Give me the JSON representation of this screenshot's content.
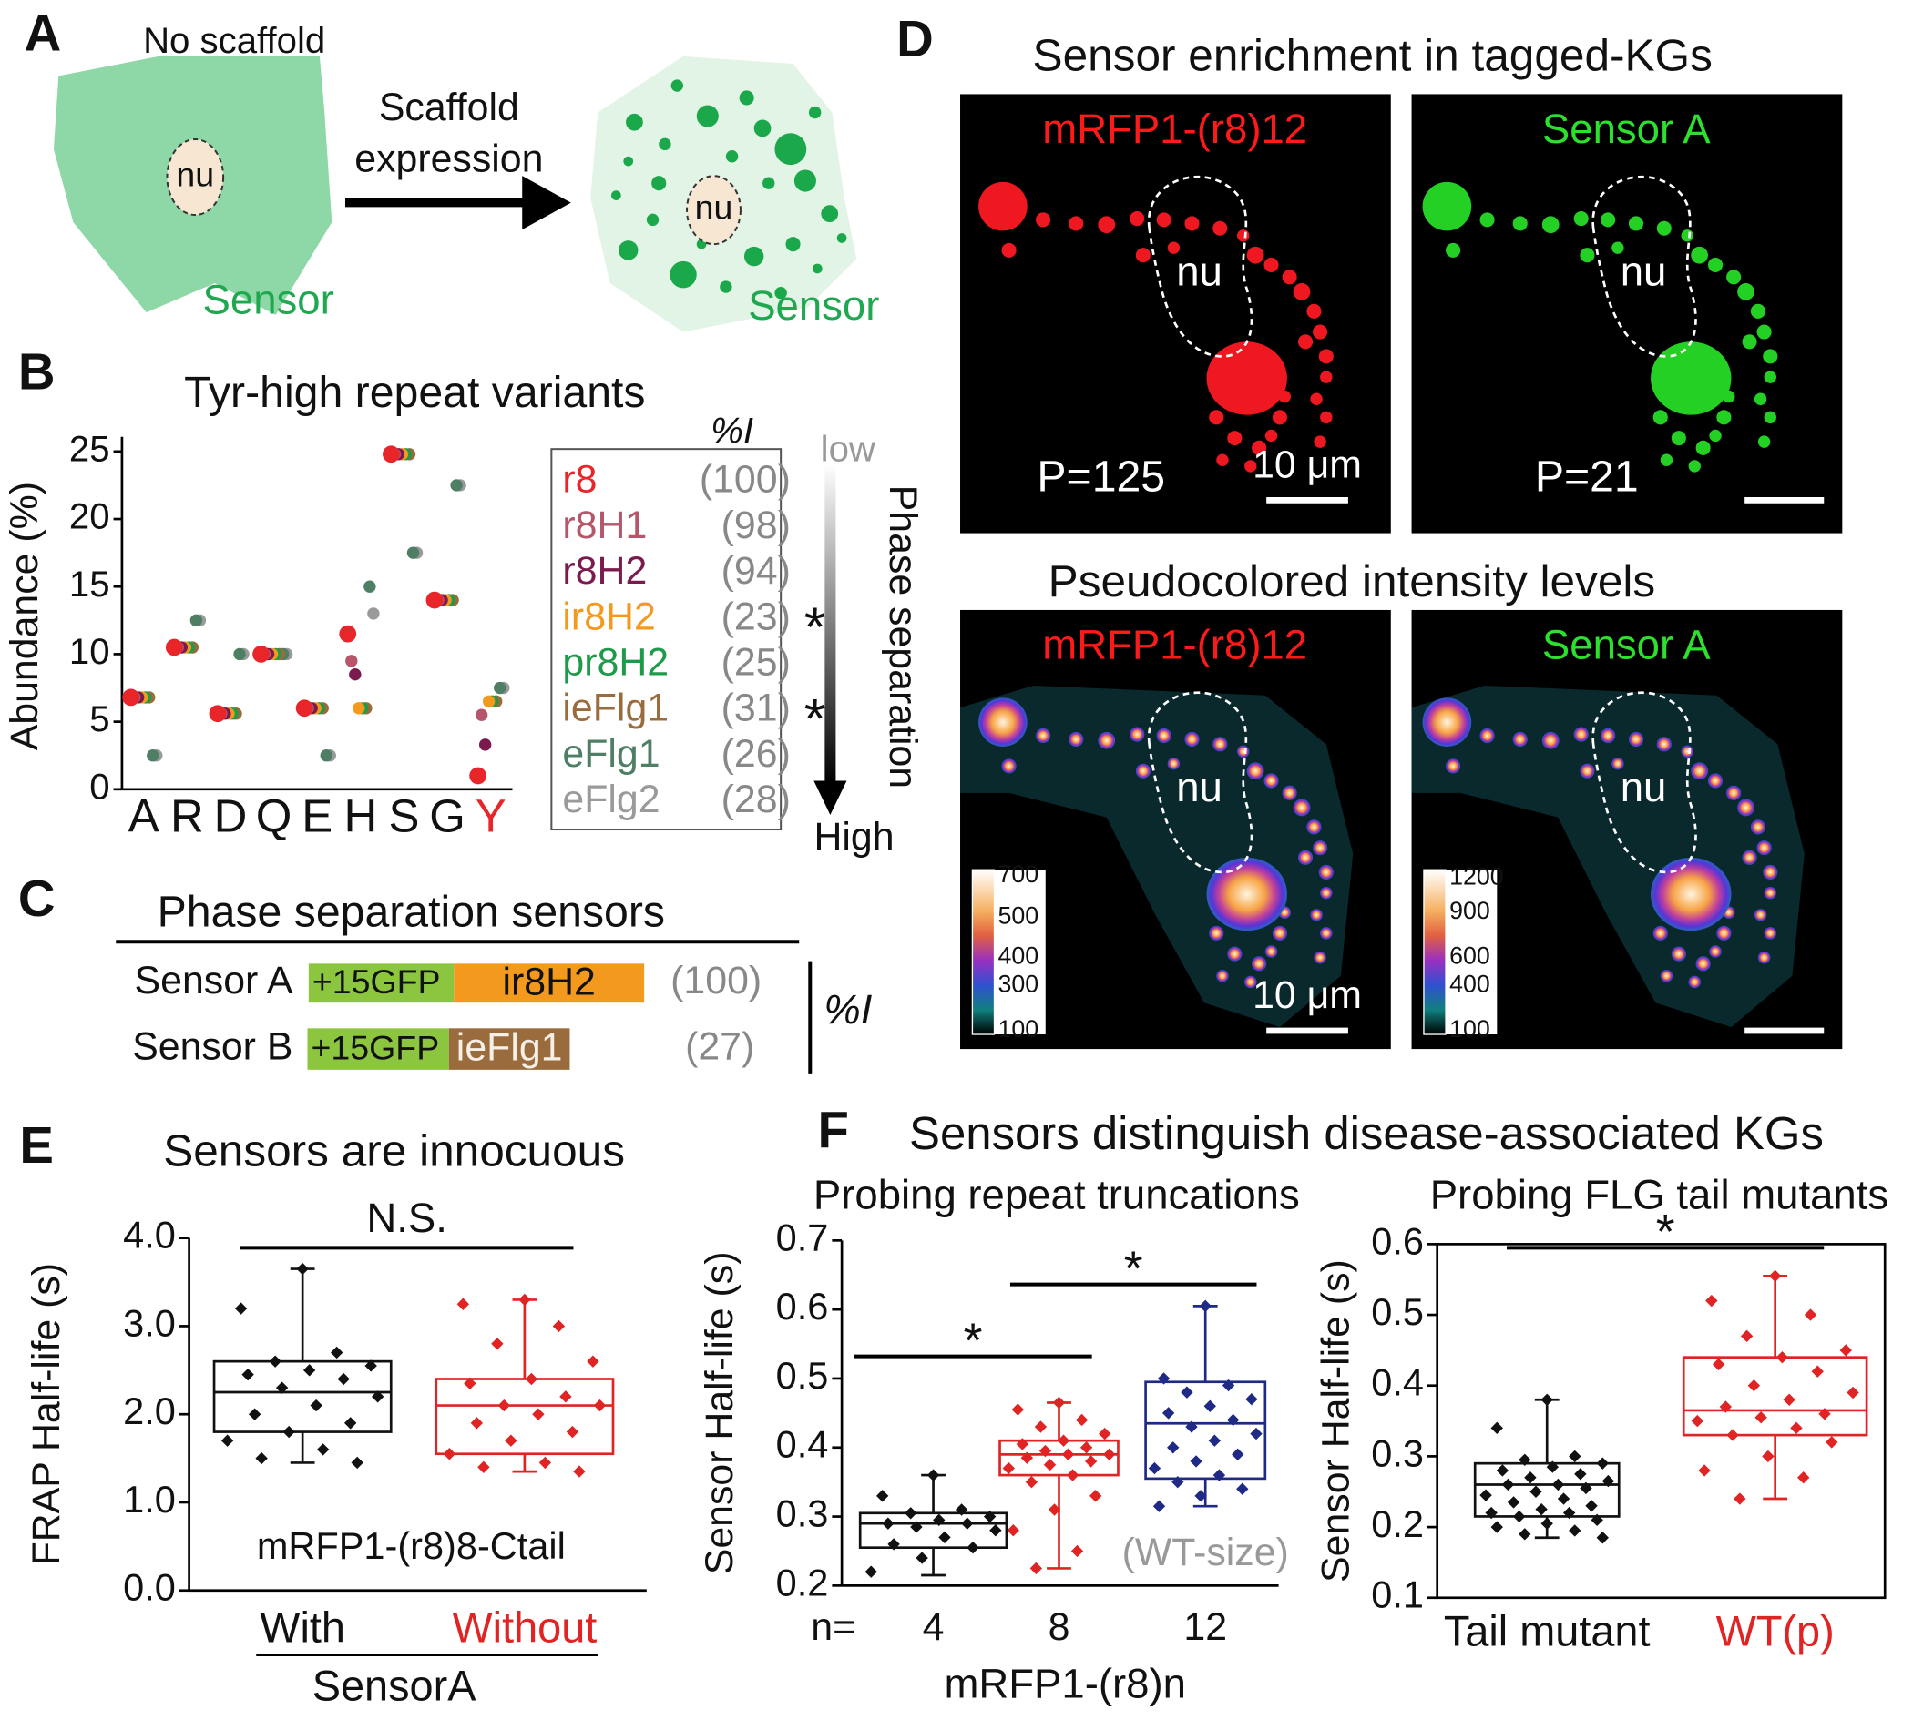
{
  "panels": {
    "A": {
      "letter": "A",
      "no_scaffold": "No scaffold",
      "nucleus_left": "nu",
      "sensor_left": "Sensor",
      "arrow_label": [
        "Scaffold",
        "expression"
      ],
      "nucleus_right": "nu",
      "sensor_right": "Sensor"
    },
    "C": {
      "letter": "C",
      "title": "Phase separation sensors",
      "unit": "%I",
      "sensors": [
        {
          "name": "Sensor A",
          "tag": "+15GFP",
          "repeat": "ir8H2",
          "tag_color": "#8cc63f",
          "repeat_color": "#f39a1e",
          "identity": "(100)"
        },
        {
          "name": "Sensor B",
          "tag": "+15GFP",
          "repeat": "ieFlg1",
          "tag_color": "#8cc63f",
          "repeat_color": "#9a6b3d",
          "identity": "(27)"
        }
      ]
    },
    "D": {
      "letter": "D",
      "title": "Sensor enrichment in tagged-KGs",
      "subtitle": "Pseudocolored intensity levels",
      "images": [
        {
          "label": "mRFP1-(r8)12",
          "label_color": "#ff1a1a",
          "nucleus": "nu",
          "p_value": "P=125",
          "scale_bar": "10 μm",
          "style": "red"
        },
        {
          "label": "Sensor A",
          "label_color": "#2ee02e",
          "nucleus": "nu",
          "p_value": "P=21",
          "style": "green"
        },
        {
          "label": "mRFP1-(r8)12",
          "label_color": "#ff1a1a",
          "nucleus": "nu",
          "scale_bar": "10 μm",
          "style": "pseudo",
          "colorbar": [
            700,
            500,
            400,
            300,
            100
          ]
        },
        {
          "label": "Sensor A",
          "label_color": "#2ee02e",
          "nucleus": "nu",
          "style": "pseudo",
          "colorbar": [
            1200,
            900,
            600,
            400,
            100
          ]
        }
      ]
    }
  },
  "chart_data": [
    {
      "type": "strip",
      "panel": "B",
      "title": "Tyr-high repeat variants",
      "y_label": "Abundance (%)",
      "categories": [
        "A",
        "R",
        "D",
        "Q",
        "E",
        "H",
        "S",
        "G",
        "Y"
      ],
      "category_colors": [
        null,
        null,
        null,
        null,
        null,
        null,
        null,
        null,
        "#e8262a"
      ],
      "ylim": [
        0,
        25
      ],
      "yticks": [
        0,
        5,
        10,
        15,
        20,
        25
      ],
      "legend_header": "%I",
      "arrow_low": "low",
      "arrow_high": "High",
      "arrow_label": "Phase separation",
      "series": [
        {
          "name": "r8",
          "color": "#e8262a",
          "identity": "(100)",
          "values": [
            6.8,
            10.5,
            5.6,
            10,
            6,
            11.5,
            24.8,
            14,
            1
          ]
        },
        {
          "name": "r8H1",
          "color": "#b5566a",
          "identity": "(98)",
          "values": [
            6.8,
            10.5,
            5.6,
            10,
            6,
            9.5,
            24.8,
            14,
            5.5
          ]
        },
        {
          "name": "r8H2",
          "color": "#7b1a4f",
          "identity": "(94)",
          "values": [
            6.8,
            10.5,
            5.6,
            10,
            6,
            8.5,
            24.8,
            14,
            3.3
          ]
        },
        {
          "name": "ir8H2",
          "color": "#f39a1e",
          "identity": "(23)",
          "star": "*",
          "values": [
            6.8,
            10.5,
            5.6,
            10,
            6,
            6,
            24.8,
            14,
            6.5
          ]
        },
        {
          "name": "pr8H2",
          "color": "#1e9a4a",
          "identity": "(25)",
          "values": [
            6.8,
            10.5,
            5.6,
            10,
            6,
            6,
            24.8,
            14,
            6.5
          ]
        },
        {
          "name": "ieFlg1",
          "color": "#9a6b3d",
          "identity": "(31)",
          "star": "*",
          "values": [
            6.8,
            10.5,
            5.6,
            10,
            6,
            6,
            24.8,
            14,
            6.5
          ]
        },
        {
          "name": "eFlg1",
          "color": "#4e7f64",
          "identity": "(26)",
          "values": [
            2.5,
            12.5,
            10,
            10,
            2.5,
            15,
            17.5,
            22.5,
            7.5
          ]
        },
        {
          "name": "eFlg2",
          "color": "#9a9a9a",
          "identity": "(28)",
          "values": [
            2.5,
            12.5,
            10,
            10,
            2.5,
            13,
            17.5,
            22.5,
            7.5
          ]
        }
      ]
    },
    {
      "type": "box",
      "panel": "E",
      "title": "Sensors are innocuous",
      "y_label": "FRAP Half-life (s)",
      "categories": [
        "With",
        "Without"
      ],
      "label_colors": true,
      "group_label": "SensorA",
      "annotation": "mRFP1-(r8)8-Ctail",
      "significance": [
        {
          "label": "N.S.",
          "pair": [
            0,
            1
          ]
        }
      ],
      "ylim": [
        0,
        4
      ],
      "yticks": [
        {
          "value": 0,
          "label": "0.0"
        },
        {
          "value": 1,
          "label": "1.0"
        },
        {
          "value": 2,
          "label": "2.0"
        },
        {
          "value": 3,
          "label": "3.0"
        },
        {
          "value": 4,
          "label": "4.0"
        }
      ],
      "boxes": [
        {
          "color": "#111111",
          "min": 1.45,
          "q1": 1.8,
          "median": 2.25,
          "q3": 2.6,
          "max": 3.65,
          "points": [
            3.65,
            3.2,
            2.7,
            2.6,
            2.55,
            2.5,
            2.45,
            2.4,
            2.3,
            2.2,
            2.1,
            2.0,
            1.9,
            1.8,
            1.7,
            1.6,
            1.5,
            1.45
          ]
        },
        {
          "color": "#e02424",
          "min": 1.35,
          "q1": 1.55,
          "median": 2.1,
          "q3": 2.4,
          "max": 3.3,
          "points": [
            3.3,
            3.25,
            3.0,
            2.8,
            2.6,
            2.4,
            2.35,
            2.2,
            2.1,
            2.1,
            2.0,
            1.9,
            1.8,
            1.7,
            1.55,
            1.45,
            1.4,
            1.35
          ]
        }
      ]
    },
    {
      "type": "box",
      "panel": "F",
      "super_title": "Sensors distinguish disease-associated KGs",
      "title": "Probing repeat truncations",
      "y_label": "Sensor Half-life (s)",
      "categories": [
        "4",
        "8",
        "12"
      ],
      "label_colors": false,
      "x_prefix": "n=",
      "x_label": "mRFP1-(r8)n",
      "annotation": "(WT-size)",
      "significance": [
        {
          "label": "*",
          "pair": [
            0,
            1
          ]
        },
        {
          "label": "*",
          "pair": [
            1,
            2
          ]
        }
      ],
      "ylim": [
        0.2,
        0.7
      ],
      "yticks": [
        0.2,
        0.3,
        0.4,
        0.5,
        0.6,
        0.7
      ],
      "boxes": [
        {
          "color": "#111111",
          "min": 0.215,
          "q1": 0.255,
          "median": 0.29,
          "q3": 0.305,
          "max": 0.36,
          "points": [
            0.36,
            0.33,
            0.31,
            0.305,
            0.3,
            0.295,
            0.29,
            0.29,
            0.285,
            0.28,
            0.27,
            0.26,
            0.255,
            0.24,
            0.22
          ]
        },
        {
          "color": "#e02424",
          "min": 0.225,
          "q1": 0.36,
          "median": 0.39,
          "q3": 0.41,
          "max": 0.465,
          "points": [
            0.465,
            0.455,
            0.44,
            0.43,
            0.42,
            0.41,
            0.405,
            0.4,
            0.395,
            0.39,
            0.39,
            0.385,
            0.38,
            0.375,
            0.37,
            0.36,
            0.35,
            0.33,
            0.31,
            0.28,
            0.25,
            0.225
          ]
        },
        {
          "color": "#1f2a86",
          "min": 0.315,
          "q1": 0.355,
          "median": 0.435,
          "q3": 0.495,
          "max": 0.605,
          "points": [
            0.605,
            0.5,
            0.49,
            0.48,
            0.47,
            0.46,
            0.45,
            0.44,
            0.43,
            0.42,
            0.41,
            0.4,
            0.39,
            0.38,
            0.37,
            0.36,
            0.35,
            0.34,
            0.33,
            0.315
          ]
        }
      ]
    },
    {
      "type": "box",
      "title": "Probing FLG tail mutants",
      "y_label": "Sensor Half-life (s)",
      "categories": [
        "Tail mutant",
        "WT(p)"
      ],
      "label_colors": true,
      "significance": [
        {
          "label": "*",
          "pair": [
            0,
            1
          ]
        }
      ],
      "ylim": [
        0.1,
        0.6
      ],
      "yticks": [
        0.1,
        0.2,
        0.3,
        0.4,
        0.5,
        0.6
      ],
      "boxes": [
        {
          "color": "#111111",
          "min": 0.185,
          "q1": 0.215,
          "median": 0.26,
          "q3": 0.29,
          "max": 0.38,
          "points": [
            0.38,
            0.34,
            0.3,
            0.295,
            0.29,
            0.285,
            0.28,
            0.275,
            0.27,
            0.265,
            0.26,
            0.26,
            0.255,
            0.25,
            0.245,
            0.24,
            0.235,
            0.23,
            0.225,
            0.22,
            0.22,
            0.215,
            0.21,
            0.205,
            0.2,
            0.195,
            0.19,
            0.185
          ]
        },
        {
          "color": "#e02424",
          "min": 0.24,
          "q1": 0.33,
          "median": 0.365,
          "q3": 0.44,
          "max": 0.555,
          "points": [
            0.555,
            0.52,
            0.5,
            0.47,
            0.45,
            0.44,
            0.43,
            0.42,
            0.4,
            0.39,
            0.38,
            0.37,
            0.36,
            0.355,
            0.35,
            0.34,
            0.33,
            0.32,
            0.3,
            0.28,
            0.27,
            0.24
          ]
        }
      ]
    }
  ]
}
